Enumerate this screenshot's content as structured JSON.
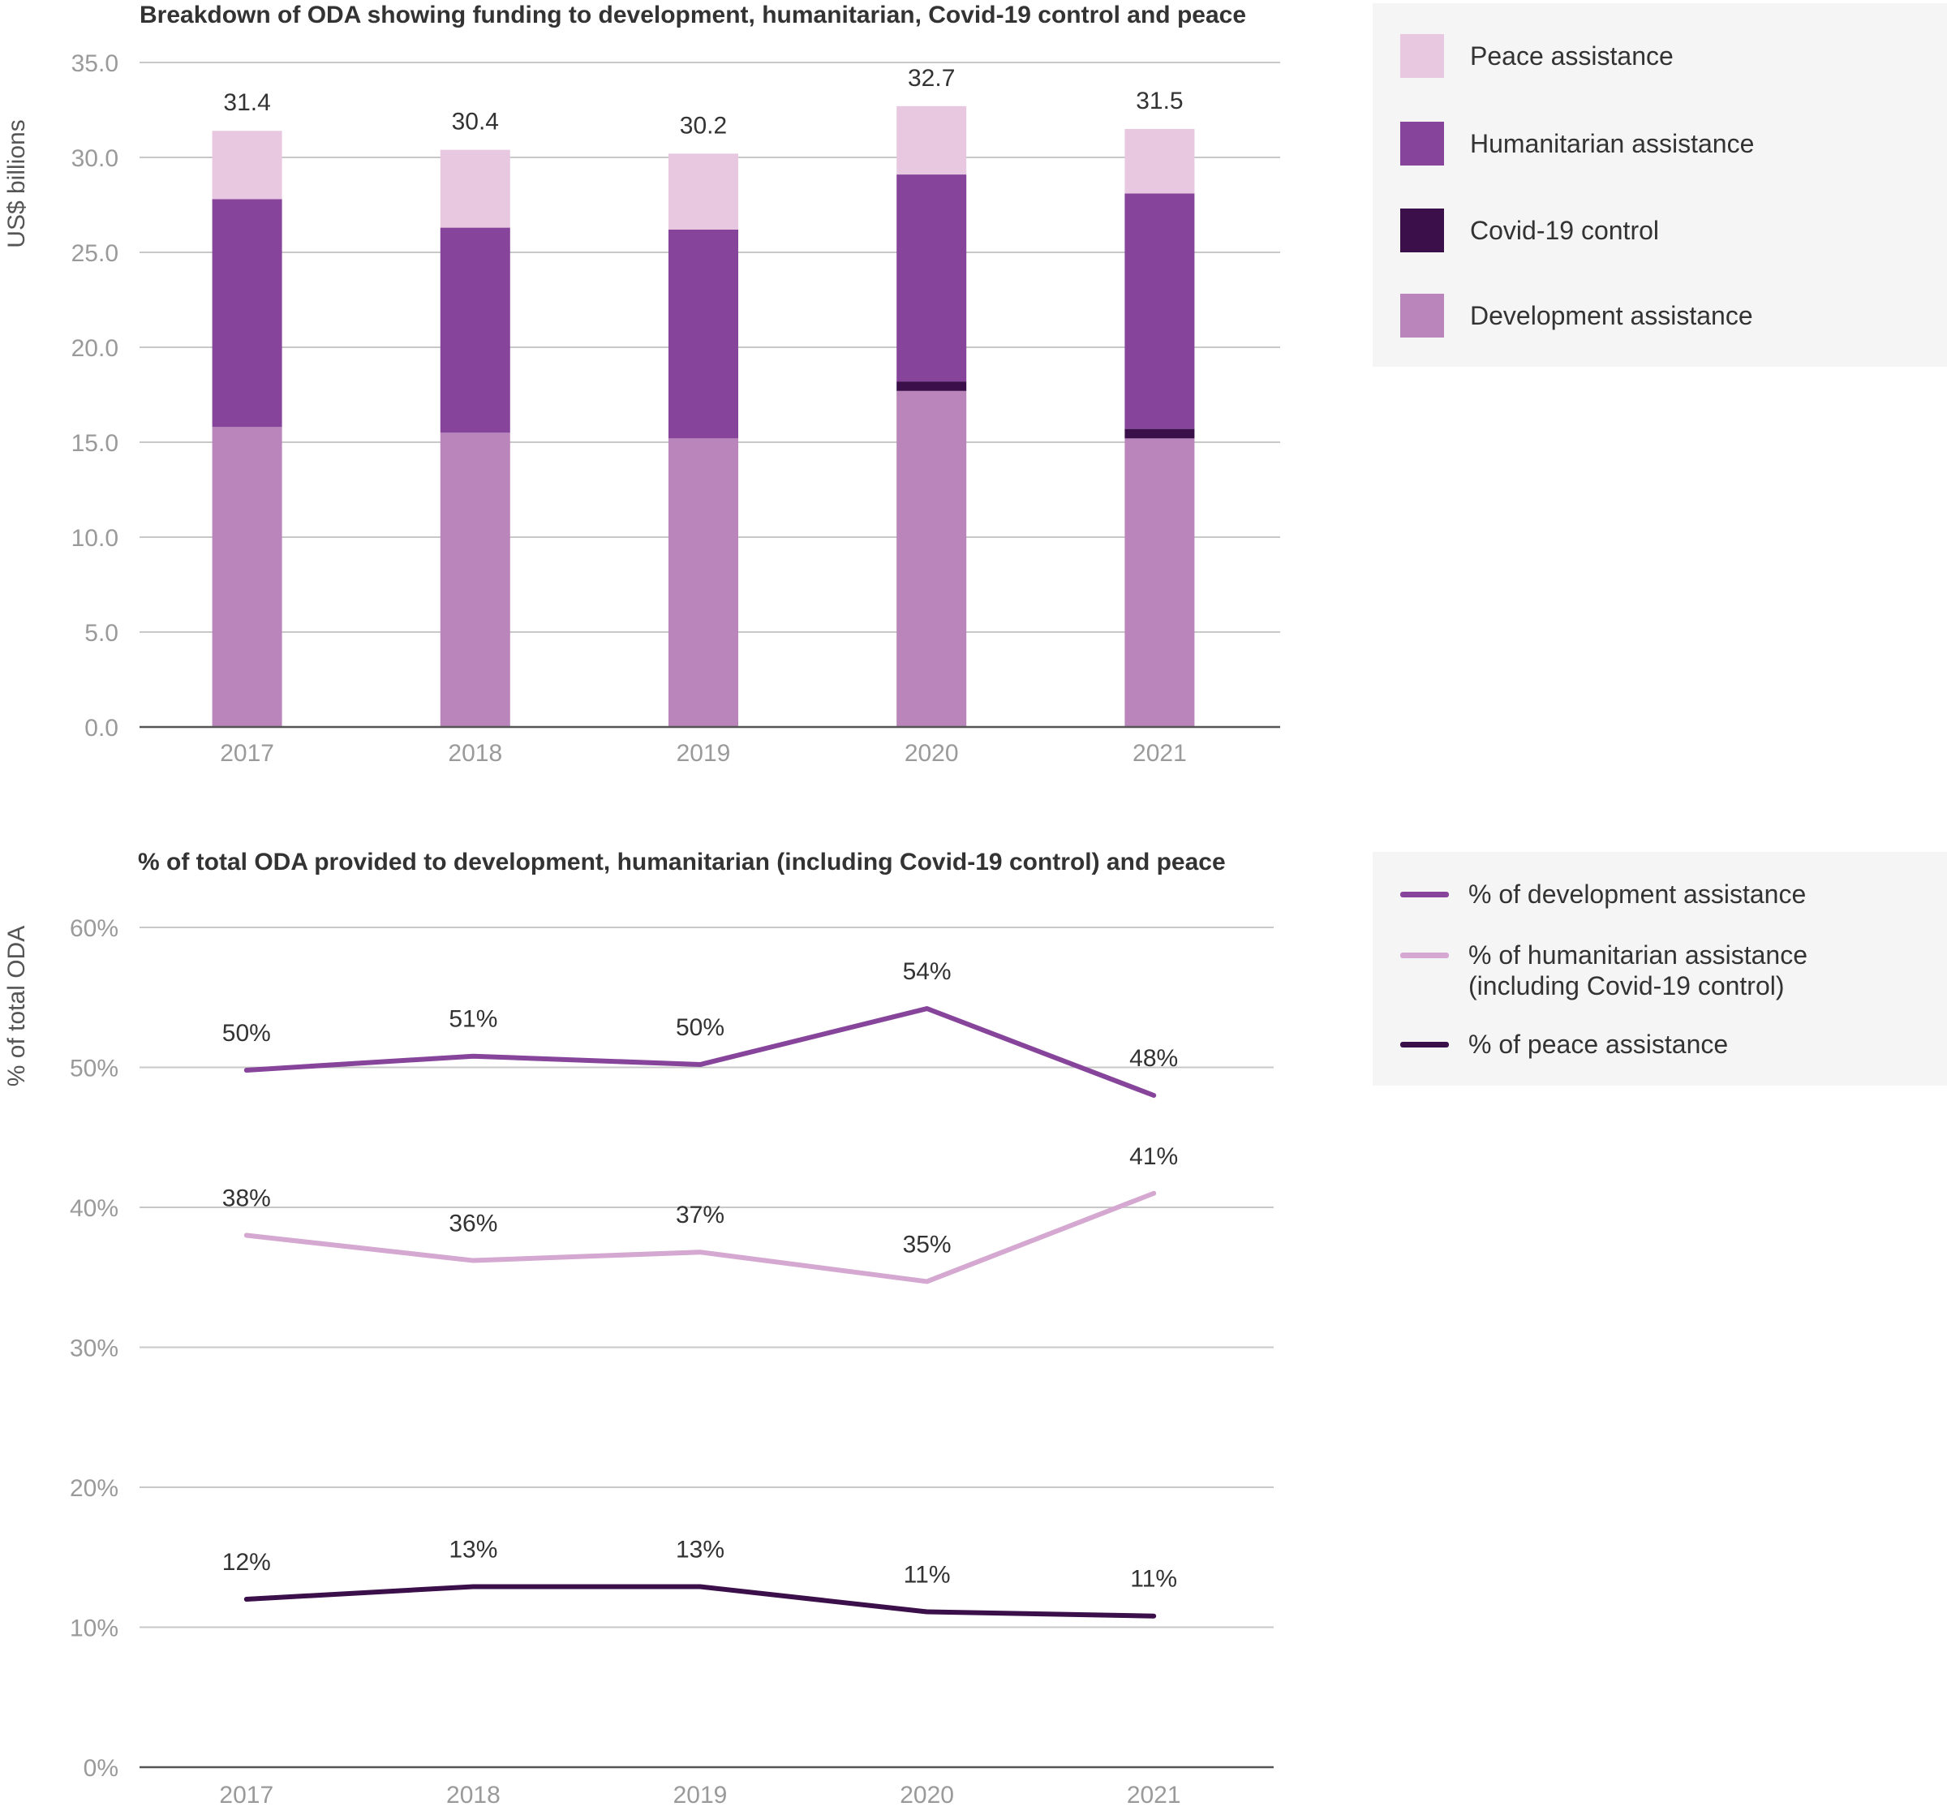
{
  "chart_data": [
    {
      "type": "bar",
      "stacked": true,
      "title": "Breakdown of ODA showing funding to development, humanitarian, Covid-19 control and peace",
      "ylabel": "US$ billions",
      "ylim": [
        0,
        35
      ],
      "yticks": [
        "0.0",
        "5.0",
        "10.0",
        "15.0",
        "20.0",
        "25.0",
        "30.0",
        "35.0"
      ],
      "grid": true,
      "legend_position": "right",
      "categories": [
        "2017",
        "2018",
        "2019",
        "2020",
        "2021"
      ],
      "series": [
        {
          "name": "Development assistance",
          "color": "#b985bb",
          "values": [
            15.8,
            15.5,
            15.2,
            17.7,
            15.2
          ]
        },
        {
          "name": "Covid-19 control",
          "color": "#3b0f4a",
          "values": [
            0,
            0,
            0,
            0.5,
            0.5
          ]
        },
        {
          "name": "Humanitarian assistance",
          "color": "#86459a",
          "values": [
            12.0,
            10.8,
            11.0,
            10.9,
            12.4
          ]
        },
        {
          "name": "Peace assistance",
          "color": "#e8c8e0",
          "values": [
            3.6,
            4.1,
            4.0,
            3.6,
            3.4
          ]
        }
      ],
      "totals": [
        "31.4",
        "30.4",
        "30.2",
        "32.7",
        "31.5"
      ]
    },
    {
      "type": "line",
      "title": "% of total ODA provided to development, humanitarian (including Covid-19 control) and peace",
      "ylabel": "% of total ODA",
      "ylim": [
        0,
        60
      ],
      "yticks": [
        "0%",
        "10%",
        "20%",
        "30%",
        "40%",
        "50%",
        "60%"
      ],
      "grid": true,
      "legend_position": "right",
      "categories": [
        "2017",
        "2018",
        "2019",
        "2020",
        "2021"
      ],
      "series": [
        {
          "name": "% of development assistance",
          "color": "#86459a",
          "values": [
            49.8,
            50.8,
            50.2,
            54.2,
            48.0
          ],
          "labels": [
            "50%",
            "51%",
            "50%",
            "54%",
            "48%"
          ]
        },
        {
          "name": "% of humanitarian assistance (including Covid-19 control)",
          "color": "#d4a8d0",
          "values": [
            38.0,
            36.2,
            36.8,
            34.7,
            41.0
          ],
          "labels": [
            "38%",
            "36%",
            "37%",
            "35%",
            "41%"
          ]
        },
        {
          "name": "% of peace assistance",
          "color": "#3b0f4a",
          "values": [
            12.0,
            12.9,
            12.9,
            11.1,
            10.8
          ],
          "labels": [
            "12%",
            "13%",
            "13%",
            "11%",
            "11%"
          ]
        }
      ]
    }
  ],
  "legend1": [
    {
      "label": "Peace assistance",
      "color": "#e8c8e0"
    },
    {
      "label": "Humanitarian assistance",
      "color": "#86459a"
    },
    {
      "label": "Covid-19 control",
      "color": "#3b0f4a"
    },
    {
      "label": "Development assistance",
      "color": "#b985bb"
    }
  ],
  "legend2": [
    {
      "label": "% of development assistance",
      "color": "#86459a"
    },
    {
      "label": "% of humanitarian assistance\n(including Covid-19 control)",
      "color": "#d4a8d0"
    },
    {
      "label": "% of peace assistance",
      "color": "#3b0f4a"
    }
  ]
}
